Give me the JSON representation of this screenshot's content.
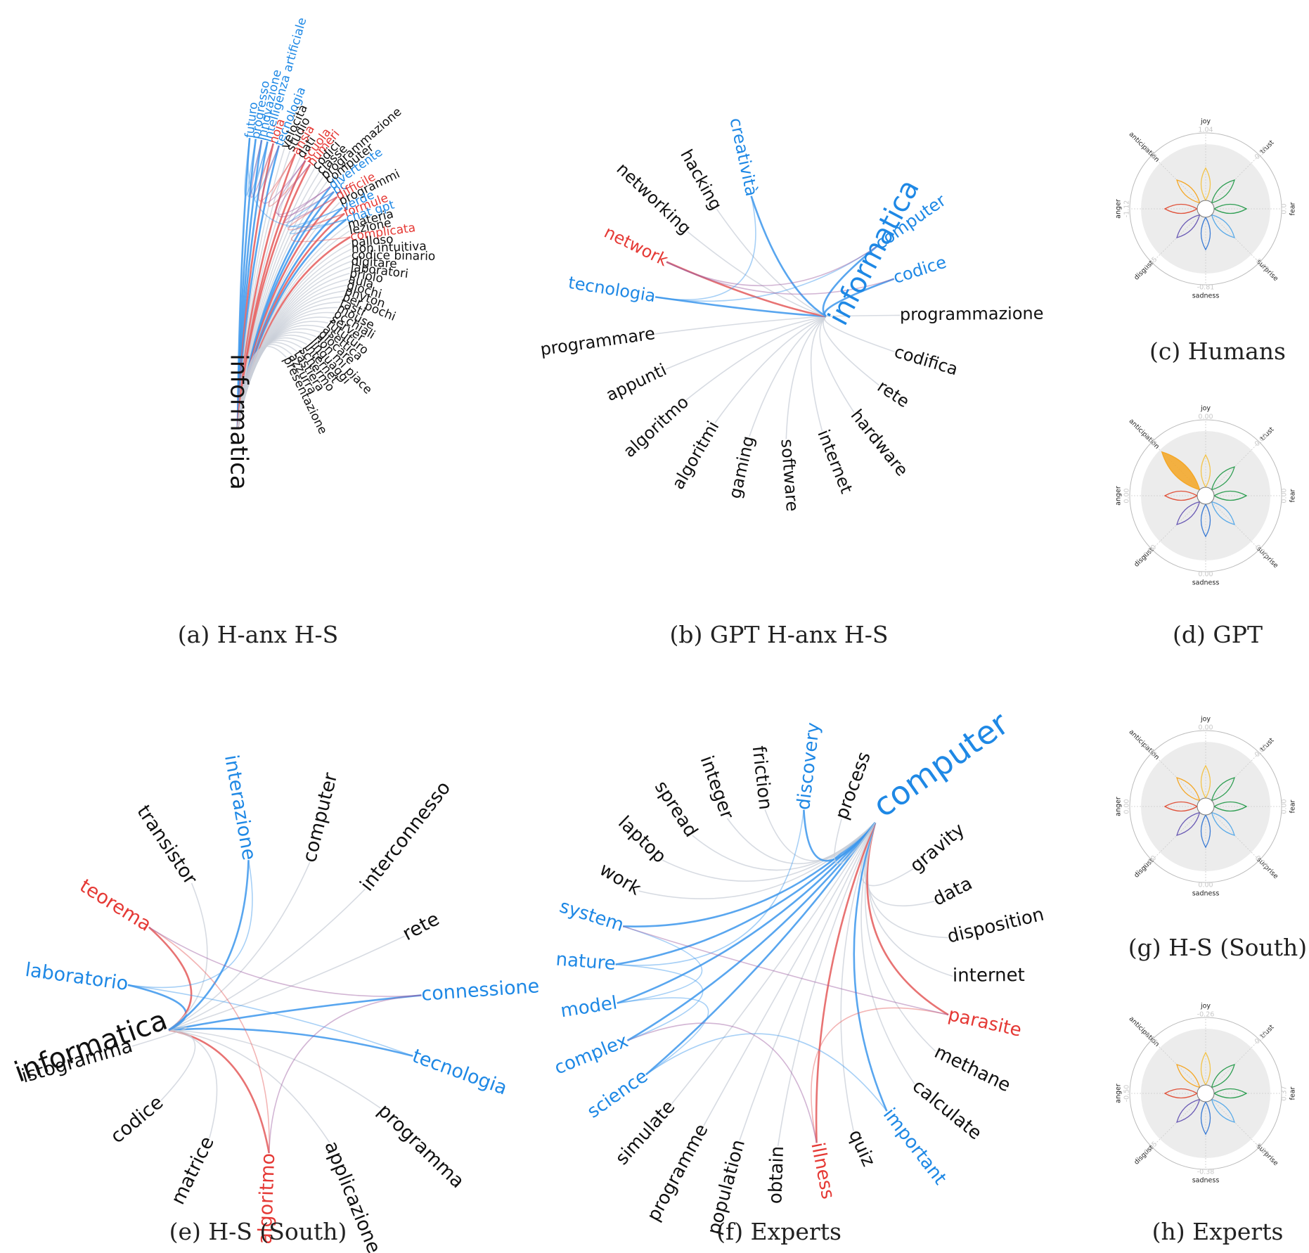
{
  "colors": {
    "black": "#111111",
    "blue": "#1e88e5",
    "red": "#e53935",
    "edge_blue": "#3c96ec",
    "edge_red": "#e45a5a",
    "edge_gray": "#c9cfd8",
    "edge_purple": "#9c5aa0",
    "joy": "#f3c44b",
    "trust": "#2e9e52",
    "fear": "#2e9e52",
    "surprise": "#5aaae8",
    "sadness": "#3a7bd5",
    "disgust": "#6b5bb5",
    "anger": "#e0533b",
    "anticipation": "#f5a623"
  },
  "networks": [
    {
      "id": "a",
      "caption": "(a) H-anx H-S",
      "center": {
        "text": "informatica",
        "color": "black"
      },
      "words": [
        {
          "text": "futuro",
          "color": "blue"
        },
        {
          "text": "progresso",
          "color": "blue"
        },
        {
          "text": "innovazione",
          "color": "blue"
        },
        {
          "text": "intelligenza artificiale",
          "color": "blue"
        },
        {
          "text": "noia",
          "color": "red"
        },
        {
          "text": "tecnologia",
          "color": "blue"
        },
        {
          "text": "velocità",
          "color": "black"
        },
        {
          "text": "studio",
          "color": "black"
        },
        {
          "text": "ansia",
          "color": "red"
        },
        {
          "text": "dati",
          "color": "black"
        },
        {
          "text": "scuola",
          "color": "red"
        },
        {
          "text": "numeri",
          "color": "red"
        },
        {
          "text": "codici",
          "color": "black"
        },
        {
          "text": "classe",
          "color": "black"
        },
        {
          "text": "programmazione",
          "color": "black"
        },
        {
          "text": "computer",
          "color": "black"
        },
        {
          "text": "divertente",
          "color": "blue"
        },
        {
          "text": "pc",
          "color": "blue"
        },
        {
          "text": "difficile",
          "color": "red"
        },
        {
          "text": "programmi",
          "color": "black"
        },
        {
          "text": "verde",
          "color": "blue"
        },
        {
          "text": "formule",
          "color": "red"
        },
        {
          "text": "chat gpt",
          "color": "blue"
        },
        {
          "text": "materia",
          "color": "black"
        },
        {
          "text": "lezione",
          "color": "black"
        },
        {
          "text": "complicata",
          "color": "red"
        },
        {
          "text": "palloso",
          "color": "black"
        },
        {
          "text": "non intuitiva",
          "color": "black"
        },
        {
          "text": "codice binario",
          "color": "black"
        },
        {
          "text": "digitare",
          "color": "black"
        },
        {
          "text": "laboratori",
          "color": "black"
        },
        {
          "text": "priolo",
          "color": "black"
        },
        {
          "text": "aula",
          "color": "black"
        },
        {
          "text": "giochi",
          "color": "black"
        },
        {
          "text": "phyton",
          "color": "black"
        },
        {
          "text": "per pochi",
          "color": "black"
        },
        {
          "text": "tasti",
          "color": "black"
        },
        {
          "text": "mouse",
          "color": "black"
        },
        {
          "text": "occhiali",
          "color": "black"
        },
        {
          "text": "server",
          "color": "black"
        },
        {
          "text": "fututuro",
          "color": "black"
        },
        {
          "text": "asettica",
          "color": "black"
        },
        {
          "text": "giocare",
          "color": "black"
        },
        {
          "text": "non mi piace",
          "color": "black"
        },
        {
          "text": "linguaggi",
          "color": "black"
        },
        {
          "text": "internet",
          "color": "black"
        },
        {
          "text": "schermo",
          "color": "black"
        },
        {
          "text": "tastiera",
          "color": "black"
        },
        {
          "text": "azzurra",
          "color": "black"
        },
        {
          "text": "presentazione",
          "color": "black"
        }
      ]
    },
    {
      "id": "b",
      "caption": "(b) GPT H-anx H-S",
      "center": {
        "text": "informatica",
        "color": "blue"
      },
      "words": [
        {
          "text": "computer",
          "color": "blue"
        },
        {
          "text": "codice",
          "color": "blue"
        },
        {
          "text": "programmazione",
          "color": "black"
        },
        {
          "text": "codifica",
          "color": "black"
        },
        {
          "text": "rete",
          "color": "black"
        },
        {
          "text": "hardware",
          "color": "black"
        },
        {
          "text": "internet",
          "color": "black"
        },
        {
          "text": "software",
          "color": "black"
        },
        {
          "text": "gaming",
          "color": "black"
        },
        {
          "text": "algoritmi",
          "color": "black"
        },
        {
          "text": "algoritmo",
          "color": "black"
        },
        {
          "text": "appunti",
          "color": "black"
        },
        {
          "text": "programmare",
          "color": "black"
        },
        {
          "text": "tecnologia",
          "color": "blue"
        },
        {
          "text": "network",
          "color": "red"
        },
        {
          "text": "networking",
          "color": "black"
        },
        {
          "text": "hacking",
          "color": "black"
        },
        {
          "text": "creatività",
          "color": "blue"
        }
      ]
    },
    {
      "id": "e",
      "caption": "(e) H-S (South)",
      "center": {
        "text": "informatica",
        "color": "black"
      },
      "words": [
        {
          "text": "computer",
          "color": "black"
        },
        {
          "text": "interconnesso",
          "color": "black"
        },
        {
          "text": "rete",
          "color": "black"
        },
        {
          "text": "connessione",
          "color": "blue"
        },
        {
          "text": "tecnologia",
          "color": "blue"
        },
        {
          "text": "programma",
          "color": "black"
        },
        {
          "text": "applicazione",
          "color": "black"
        },
        {
          "text": "algoritmo",
          "color": "red"
        },
        {
          "text": "matrice",
          "color": "black"
        },
        {
          "text": "codice",
          "color": "black"
        },
        {
          "text": "istogramma",
          "color": "black"
        },
        {
          "text": "laboratorio",
          "color": "blue"
        },
        {
          "text": "teorema",
          "color": "red"
        },
        {
          "text": "transistor",
          "color": "black"
        },
        {
          "text": "interazione",
          "color": "blue"
        }
      ]
    },
    {
      "id": "f",
      "caption": "(f) Experts",
      "center": {
        "text": "computer",
        "color": "blue"
      },
      "words": [
        {
          "text": "gravity",
          "color": "black"
        },
        {
          "text": "data",
          "color": "black"
        },
        {
          "text": "disposition",
          "color": "black"
        },
        {
          "text": "internet",
          "color": "black"
        },
        {
          "text": "parasite",
          "color": "red"
        },
        {
          "text": "methane",
          "color": "black"
        },
        {
          "text": "calculate",
          "color": "black"
        },
        {
          "text": "important",
          "color": "blue"
        },
        {
          "text": "quiz",
          "color": "black"
        },
        {
          "text": "illness",
          "color": "red"
        },
        {
          "text": "obtain",
          "color": "black"
        },
        {
          "text": "population",
          "color": "black"
        },
        {
          "text": "programme",
          "color": "black"
        },
        {
          "text": "simulate",
          "color": "black"
        },
        {
          "text": "science",
          "color": "blue"
        },
        {
          "text": "complex",
          "color": "blue"
        },
        {
          "text": "model",
          "color": "blue"
        },
        {
          "text": "nature",
          "color": "blue"
        },
        {
          "text": "system",
          "color": "blue"
        },
        {
          "text": "work",
          "color": "black"
        },
        {
          "text": "laptop",
          "color": "black"
        },
        {
          "text": "spread",
          "color": "black"
        },
        {
          "text": "integer",
          "color": "black"
        },
        {
          "text": "friction",
          "color": "black"
        },
        {
          "text": "discovery",
          "color": "blue"
        },
        {
          "text": "process",
          "color": "black"
        }
      ]
    }
  ],
  "emotion_labels": [
    "joy",
    "trust",
    "fear",
    "surprise",
    "sadness",
    "disgust",
    "anger",
    "anticipation"
  ],
  "flowers": [
    {
      "id": "c",
      "caption": "(c) Humans",
      "values": [
        "1.04",
        "0.55",
        "0.0",
        "-0.49",
        "-0.81",
        "-1.85",
        "-1.12",
        "1.78"
      ],
      "highlight": null
    },
    {
      "id": "d",
      "caption": "(d) GPT",
      "values": [
        "0.00",
        "0.00",
        "0.00",
        "0.00",
        "0.00",
        "0.00",
        "0.00",
        "2.60"
      ],
      "highlight": "anticipation"
    },
    {
      "id": "g",
      "caption": "(g) H-S (South)",
      "values": [
        "0.00",
        "0.00",
        "0.00",
        "0.00",
        "0.00",
        "0.00",
        "0.00",
        "0.00"
      ],
      "highlight": null
    },
    {
      "id": "h",
      "caption": "(h) Experts",
      "values": [
        "-0.26",
        "0.30",
        "0.37",
        "-0.80",
        "-0.38",
        "-0.05",
        "-0.50",
        "-0.09"
      ],
      "highlight": null
    }
  ]
}
